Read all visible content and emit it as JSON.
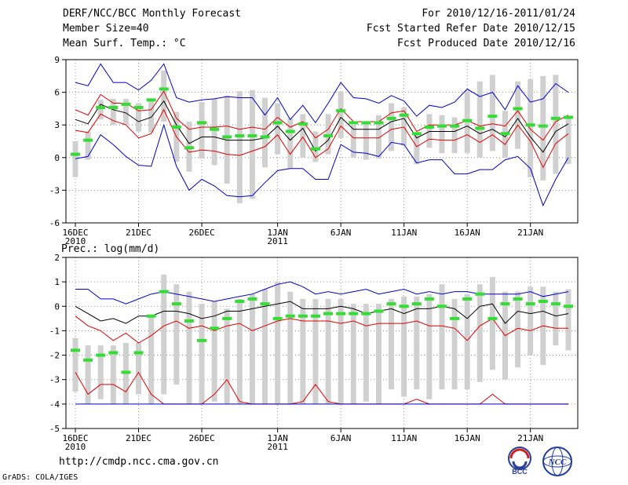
{
  "header": {
    "left": [
      "DERF/NCC/BCC Monthly Forecast",
      "Member Size=40",
      "Mean Surf. Temp.: °C"
    ],
    "right": [
      "For 2010/12/16-2011/01/24",
      "Fcst Started Refer Date 2010/12/15",
      "Fcst Produced Date 2010/12/16"
    ]
  },
  "footer": {
    "url": "http://cmdp.ncc.cma.gov.cn",
    "grads": "GrADS: COLA/IGES"
  },
  "logos": {
    "bcc": "BCC",
    "ncc": "NCC"
  },
  "colors": {
    "mean": "#000000",
    "inner": "#e00000",
    "outer": "#0000cc",
    "obs": "#33dd33",
    "bar": "#d0d0d0",
    "grid": "#777777"
  },
  "chart_data": [
    {
      "type": "line",
      "title": "Mean Surf. Temp.: °C",
      "days": 40,
      "ylim": [
        -6,
        9
      ],
      "yticks": [
        -6,
        -3,
        0,
        3,
        6,
        9
      ],
      "xtick_index": [
        0,
        5,
        10,
        16,
        21,
        26,
        31,
        36
      ],
      "xtick_labels": [
        "16DEC",
        "21DEC",
        "26DEC",
        "1JAN",
        "6JAN",
        "11JAN",
        "16JAN",
        "21JAN"
      ],
      "xtick_sublabels": [
        "2010",
        "",
        "",
        "2011",
        "",
        "",
        "",
        ""
      ],
      "series": [
        {
          "name": "ensemble max",
          "color": "outer",
          "values": [
            6.9,
            6.6,
            8.6,
            6.9,
            6.9,
            6.2,
            7.1,
            8.6,
            5.5,
            5.1,
            5.3,
            5.4,
            5.6,
            5.5,
            5.5,
            3.9,
            5.5,
            3.5,
            4.8,
            3.2,
            5.0,
            6.9,
            5.5,
            5.4,
            5.0,
            5.7,
            5.2,
            3.8,
            4.8,
            4.6,
            5.1,
            6.3,
            5.6,
            6.0,
            4.4,
            6.6,
            5.1,
            5.4,
            6.8,
            6.0
          ]
        },
        {
          "name": "upper spread",
          "color": "inner",
          "values": [
            4.4,
            3.9,
            5.8,
            5.0,
            5.0,
            4.3,
            4.4,
            6.1,
            3.6,
            2.6,
            2.8,
            2.8,
            2.9,
            2.6,
            2.8,
            2.6,
            3.7,
            2.8,
            3.3,
            1.8,
            2.6,
            4.5,
            3.3,
            3.3,
            3.3,
            4.1,
            4.3,
            2.4,
            3.0,
            3.0,
            3.0,
            3.4,
            2.9,
            3.1,
            2.9,
            4.3,
            2.6,
            1.6,
            3.3,
            3.9
          ]
        },
        {
          "name": "ensemble mean",
          "color": "mean",
          "values": [
            3.5,
            3.1,
            4.9,
            4.4,
            4.1,
            3.3,
            3.7,
            5.2,
            3.0,
            1.3,
            1.9,
            1.9,
            1.6,
            1.6,
            1.6,
            1.8,
            2.9,
            1.6,
            2.7,
            0.6,
            1.6,
            3.7,
            2.6,
            2.6,
            2.6,
            3.3,
            3.6,
            1.8,
            2.4,
            2.4,
            2.4,
            2.9,
            2.2,
            2.6,
            1.9,
            3.6,
            1.9,
            0.5,
            2.4,
            3.1
          ]
        },
        {
          "name": "lower spread",
          "color": "inner",
          "values": [
            2.5,
            2.3,
            4.0,
            3.4,
            3.0,
            1.8,
            2.2,
            4.4,
            1.9,
            0.5,
            0.7,
            0.6,
            0.3,
            0.2,
            0.6,
            1.0,
            2.1,
            0.3,
            1.9,
            0.0,
            0.8,
            2.9,
            1.8,
            1.8,
            1.8,
            2.6,
            2.8,
            1.0,
            1.7,
            1.6,
            1.6,
            2.1,
            1.4,
            2.1,
            1.2,
            3.0,
            1.5,
            -0.9,
            1.3,
            2.2
          ]
        },
        {
          "name": "ensemble min",
          "color": "outer",
          "values": [
            -0.1,
            0.1,
            2.1,
            1.2,
            0.1,
            -0.7,
            -0.8,
            3.0,
            -0.8,
            -3.0,
            -2.0,
            -2.6,
            -3.5,
            -3.6,
            -3.5,
            -2.3,
            -1.2,
            -1.0,
            -1.0,
            -2.0,
            -2.0,
            1.2,
            0.5,
            0.4,
            0.1,
            1.4,
            1.2,
            -0.5,
            -0.2,
            -0.2,
            -1.5,
            -1.5,
            -1.1,
            -1.1,
            -0.2,
            0.1,
            -1.0,
            -4.4,
            -2.0,
            0.0
          ]
        }
      ],
      "bars": {
        "low": [
          -1.8,
          -0.2,
          3.5,
          3.0,
          3.0,
          2.4,
          2.3,
          3.3,
          -0.4,
          -1.3,
          -0.1,
          -0.7,
          -2.4,
          -4.2,
          -3.8,
          -0.9,
          0.3,
          -1.0,
          0.0,
          -0.4,
          0.3,
          1.8,
          0.0,
          -0.2,
          -0.1,
          0.6,
          1.1,
          -0.6,
          0.9,
          0.4,
          0.4,
          0.4,
          0.0,
          0.6,
          0.0,
          0.8,
          -1.8,
          -2.1,
          -1.5,
          -0.6
        ],
        "high": [
          1.5,
          2.4,
          5.3,
          5.4,
          5.4,
          5.0,
          5.4,
          8.0,
          4.2,
          3.3,
          5.1,
          5.4,
          5.7,
          6.1,
          6.2,
          5.5,
          5.0,
          3.6,
          4.0,
          2.4,
          4.0,
          6.1,
          3.0,
          3.2,
          3.9,
          5.0,
          4.6,
          2.1,
          4.0,
          3.9,
          3.7,
          6.2,
          7.0,
          7.6,
          4.3,
          7.0,
          7.2,
          7.5,
          7.6,
          3.7
        ]
      },
      "observed": [
        0.3,
        1.6,
        4.6,
        4.6,
        4.9,
        4.6,
        5.3,
        6.3,
        2.8,
        0.9,
        3.2,
        2.6,
        1.9,
        2.0,
        2.0,
        1.9,
        3.2,
        2.4,
        3.1,
        0.8,
        2.0,
        4.3,
        3.2,
        3.2,
        3.2,
        3.6,
        3.9,
        2.2,
        2.8,
        2.9,
        2.9,
        3.4,
        2.7,
        3.8,
        2.2,
        4.5,
        3.0,
        2.9,
        3.6,
        3.7
      ]
    },
    {
      "type": "line",
      "title": "Prec.: log(mm/d)",
      "days": 40,
      "ylim": [
        -5,
        2
      ],
      "yticks": [
        -5,
        -4,
        -3,
        -2,
        -1,
        0,
        1,
        2
      ],
      "xtick_index": [
        0,
        5,
        10,
        16,
        21,
        26,
        31,
        36
      ],
      "xtick_labels": [
        "16DEC",
        "21DEC",
        "26DEC",
        "1JAN",
        "6JAN",
        "11JAN",
        "16JAN",
        "21JAN"
      ],
      "xtick_sublabels": [
        "2010",
        "",
        "",
        "2011",
        "",
        "",
        "",
        ""
      ],
      "series": [
        {
          "name": "ensemble max",
          "color": "outer",
          "values": [
            0.7,
            0.7,
            0.3,
            0.3,
            0.1,
            0.3,
            0.5,
            0.6,
            0.5,
            0.4,
            0.3,
            0.2,
            0.3,
            0.4,
            0.5,
            0.7,
            0.9,
            1.0,
            0.8,
            0.5,
            0.6,
            0.5,
            0.6,
            0.7,
            0.5,
            0.6,
            0.7,
            0.5,
            0.6,
            0.5,
            0.6,
            0.6,
            0.5,
            0.5,
            0.5,
            0.5,
            0.6,
            0.4,
            0.5,
            0.6
          ]
        },
        {
          "name": "upper spread",
          "color": "inner",
          "values": [
            -0.4,
            -0.8,
            -1.0,
            -1.4,
            -1.1,
            -1.5,
            -1.2,
            -0.8,
            -0.6,
            -0.9,
            -0.8,
            -1.0,
            -0.8,
            -0.7,
            -1.0,
            -0.8,
            -0.6,
            -0.5,
            -0.6,
            -0.6,
            -0.6,
            -0.7,
            -0.6,
            -0.8,
            -0.7,
            -0.7,
            -0.7,
            -0.6,
            -0.8,
            -0.8,
            -0.9,
            -1.4,
            -0.8,
            -0.5,
            -1.2,
            -0.9,
            -1.0,
            -0.8,
            -0.9,
            -0.9
          ]
        },
        {
          "name": "ensemble mean",
          "color": "mean",
          "values": [
            0.0,
            -0.3,
            -0.6,
            -0.5,
            -0.7,
            -0.4,
            -0.4,
            -0.2,
            -0.2,
            -0.3,
            -0.5,
            -0.4,
            -0.2,
            -0.2,
            -0.1,
            0.0,
            0.1,
            0.2,
            -0.1,
            -0.1,
            -0.1,
            0.0,
            -0.1,
            -0.3,
            -0.2,
            -0.1,
            -0.3,
            -0.1,
            -0.1,
            0.0,
            -0.1,
            -0.5,
            0.0,
            0.1,
            -0.7,
            -0.2,
            -0.3,
            -0.2,
            -0.4,
            -0.3
          ]
        },
        {
          "name": "lower spread",
          "color": "inner",
          "values": [
            -2.7,
            -3.6,
            -3.2,
            -3.2,
            -3.5,
            -2.7,
            -3.6,
            -4.0,
            -4.0,
            -4.0,
            -4.0,
            -3.6,
            -3.0,
            -3.9,
            -4.0,
            -4.0,
            -4.0,
            -4.0,
            -3.9,
            -3.2,
            -3.9,
            -4.0,
            -4.0,
            -4.0,
            -4.0,
            -4.0,
            -4.0,
            -3.8,
            -4.0,
            -4.0,
            -4.0,
            -4.0,
            -4.0,
            -3.6,
            -4.0,
            -4.0,
            -4.0,
            -4.0,
            -4.0,
            -4.0
          ]
        },
        {
          "name": "ensemble min",
          "color": "outer",
          "values": [
            -4.0,
            -4.0,
            -4.0,
            -4.0,
            -4.0,
            -4.0,
            -4.0,
            -4.0,
            -4.0,
            -4.0,
            -4.0,
            -4.0,
            -4.0,
            -4.0,
            -4.0,
            -4.0,
            -4.0,
            -4.0,
            -4.0,
            -4.0,
            -4.0,
            -4.0,
            -4.0,
            -4.0,
            -4.0,
            -4.0,
            -4.0,
            -4.0,
            -4.0,
            -4.0,
            -4.0,
            -4.0,
            -4.0,
            -4.0,
            -4.0,
            -4.0,
            -4.0,
            -4.0,
            -4.0,
            -4.0
          ]
        }
      ],
      "bars": {
        "low": [
          -3.5,
          -4.0,
          -3.8,
          -4.0,
          -4.0,
          -3.6,
          -4.0,
          -3.6,
          -3.2,
          -4.0,
          -4.0,
          -3.9,
          -4.0,
          -4.0,
          -4.0,
          -4.0,
          -4.0,
          -4.0,
          -4.0,
          -4.0,
          -4.0,
          -4.0,
          -4.0,
          -3.9,
          -4.0,
          -3.4,
          -3.7,
          -3.4,
          -3.8,
          -3.4,
          -3.4,
          -3.4,
          -3.1,
          -2.6,
          -3.0,
          -2.5,
          -2.0,
          -2.4,
          -1.6,
          -1.8
        ],
        "high": [
          -1.3,
          -1.6,
          -1.6,
          -1.6,
          -1.5,
          -1.5,
          -0.4,
          1.3,
          0.9,
          0.6,
          0.1,
          0.2,
          -0.1,
          0.3,
          0.5,
          0.7,
          1.0,
          0.6,
          0.3,
          0.3,
          0.3,
          0.3,
          0.1,
          0.1,
          0.1,
          0.3,
          0.4,
          0.4,
          0.5,
          0.9,
          0.3,
          0.5,
          0.9,
          1.2,
          0.6,
          0.6,
          0.8,
          0.8,
          0.6,
          0.7
        ]
      },
      "observed": [
        -1.8,
        -2.2,
        -2.0,
        -1.9,
        -2.7,
        -1.9,
        -0.4,
        0.6,
        0.1,
        -0.6,
        -1.4,
        -0.9,
        -0.5,
        0.2,
        0.3,
        0.1,
        -0.5,
        -0.4,
        -0.4,
        -0.4,
        -0.3,
        -0.3,
        -0.3,
        -0.3,
        -0.2,
        0.1,
        0.0,
        0.1,
        0.3,
        0.0,
        -0.5,
        0.3,
        0.5,
        -0.5,
        0.1,
        0.3,
        0.1,
        0.2,
        0.1,
        0.0
      ]
    }
  ]
}
